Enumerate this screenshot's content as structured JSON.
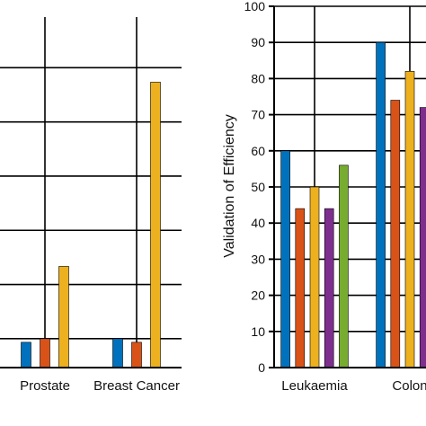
{
  "chart_data": [
    {
      "type": "bar",
      "title": "",
      "xlabel": "",
      "ylabel": "",
      "categories": [
        "Prostate",
        "Breast Cancer"
      ],
      "ylim": [
        0,
        100
      ],
      "grid": true,
      "series": [
        {
          "color": "#0072BD",
          "values": [
            7,
            8
          ]
        },
        {
          "color": "#D95319",
          "values": [
            8,
            7
          ]
        },
        {
          "color": "#EDB120",
          "values": [
            28,
            79
          ]
        }
      ]
    },
    {
      "type": "bar",
      "title": "",
      "xlabel": "",
      "ylabel": "Validation of Efficiency",
      "categories": [
        "Leukaemia",
        "Colon"
      ],
      "ylim": [
        0,
        100
      ],
      "yticks": [
        "0",
        "10",
        "20",
        "30",
        "40",
        "50",
        "60",
        "70",
        "80",
        "90",
        "100"
      ],
      "grid": true,
      "series": [
        {
          "color": "#0072BD",
          "values": [
            60,
            90
          ]
        },
        {
          "color": "#D95319",
          "values": [
            44,
            74
          ]
        },
        {
          "color": "#EDB120",
          "values": [
            50,
            82
          ]
        },
        {
          "color": "#7E2F8E",
          "values": [
            44,
            72
          ]
        },
        {
          "color": "#77AC30",
          "values": [
            56,
            null
          ]
        }
      ]
    }
  ]
}
